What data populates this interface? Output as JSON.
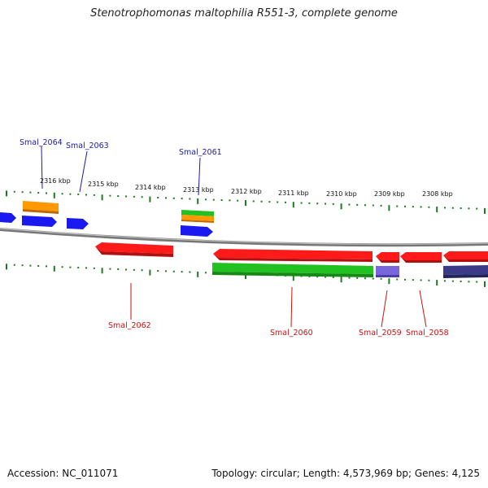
{
  "title": "Stenotrophomonas maltophilia R551-3, complete genome",
  "footer": {
    "accession": "Accession: NC_011071",
    "summary": "Topology: circular; Length: 4,573,969 bp; Genes: 4,125"
  },
  "colors": {
    "backbone": "#8a8a8a",
    "tick": "#1e7a1e",
    "forward_label": "#1a1aaa",
    "reverse_label": "#cc1111",
    "blue": "#1a1af0",
    "orange": "#ff9900",
    "green": "#22c122",
    "red": "#ff1a1a",
    "violet": "#7766dd",
    "navy": "#3a3a88"
  },
  "kbp_labels": [
    "2316 kbp",
    "2315 kbp",
    "2314 kbp",
    "2313 kbp",
    "2312 kbp",
    "2311 kbp",
    "2310 kbp",
    "2309 kbp",
    "2308 kbp"
  ],
  "gene_labels": {
    "forward": [
      "Smal_2064",
      "Smal_2063",
      "Smal_2061"
    ],
    "reverse": [
      "Smal_2062",
      "Smal_2060",
      "Smal_2059",
      "Smal_2058"
    ]
  }
}
